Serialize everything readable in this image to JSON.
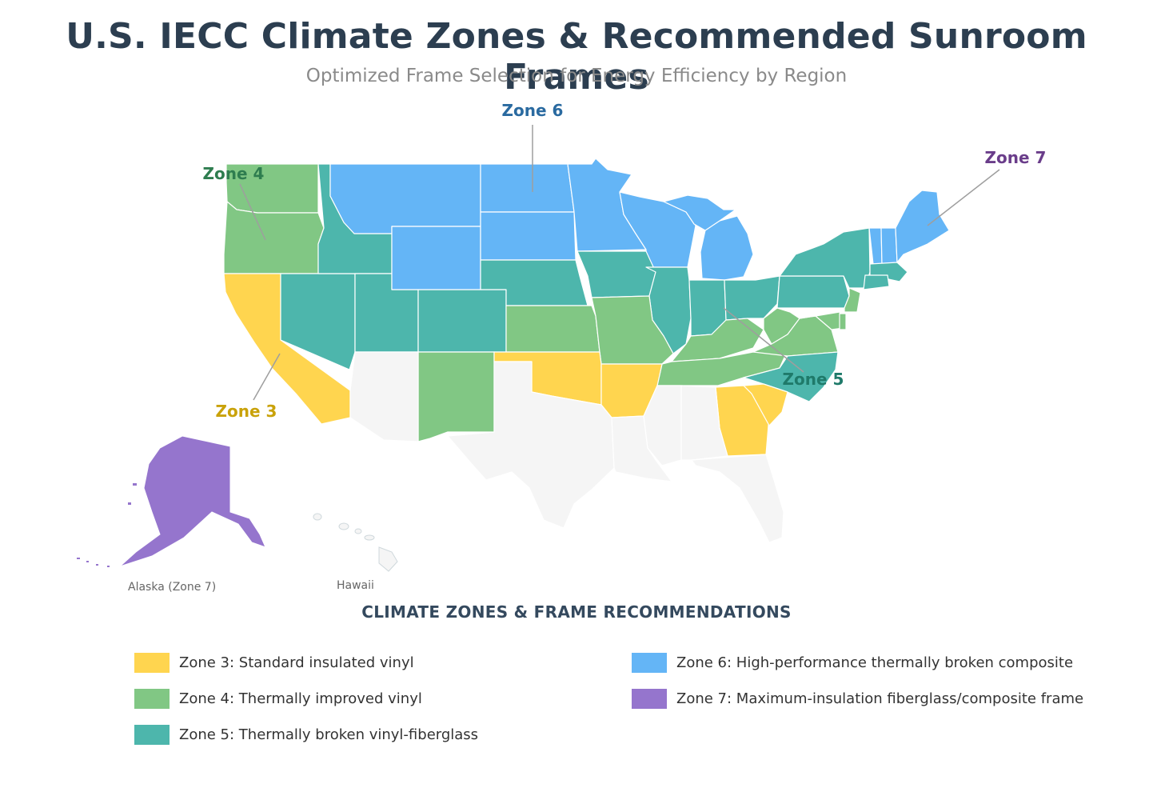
{
  "header": {
    "title": "U.S. IECC Climate Zones & Recommended Sunroom Frames",
    "subtitle": "Optimized Frame Selection for Energy Efficiency by Region"
  },
  "colors": {
    "zone3": "#ffd54f",
    "zone4": "#81c784",
    "zone5": "#4db6ac",
    "zone6": "#64b5f6",
    "zone7": "#9575cd",
    "unzoned": "#f5f5f5",
    "border": "#cfd8dc"
  },
  "map": {
    "callouts": {
      "zone3": "Zone 3",
      "zone4": "Zone 4",
      "zone5": "Zone 5",
      "zone6": "Zone 6",
      "zone7": "Zone 7"
    },
    "callout_colors": {
      "zone3": "#c9a20a",
      "zone4": "#2e7d4f",
      "zone5": "#1f7a6a",
      "zone6": "#2a6aa0",
      "zone7": "#6a3d8a"
    },
    "inset_labels": {
      "alaska": "Alaska (Zone 7)",
      "hawaii": "Hawaii"
    }
  },
  "legend": {
    "title": "CLIMATE ZONES & FRAME RECOMMENDATIONS",
    "items": [
      {
        "label": "Zone 3: Standard insulated vinyl",
        "color": "#ffd54f"
      },
      {
        "label": "Zone 4: Thermally improved vinyl",
        "color": "#81c784"
      },
      {
        "label": "Zone 5: Thermally broken vinyl-fiberglass",
        "color": "#4db6ac"
      },
      {
        "label": "Zone 6: High-performance thermally broken composite",
        "color": "#64b5f6"
      },
      {
        "label": "Zone 7: Maximum-insulation fiberglass/composite frame",
        "color": "#9575cd"
      }
    ]
  }
}
